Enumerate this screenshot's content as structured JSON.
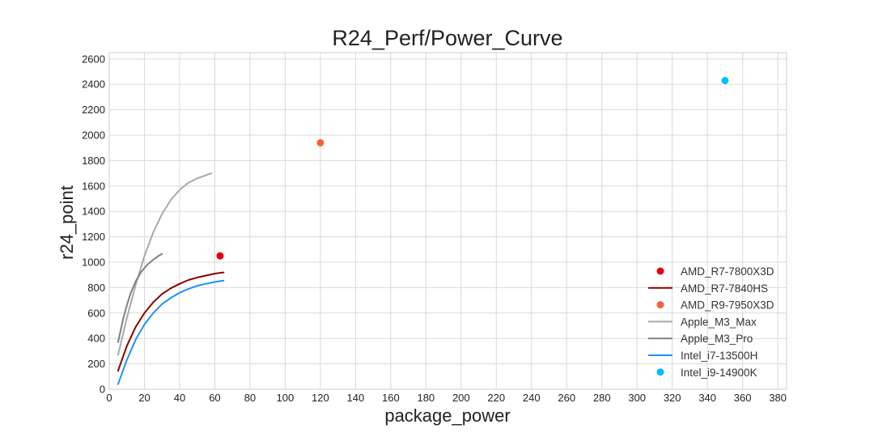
{
  "chart_data": {
    "type": "line",
    "title": "R24_Perf/Power_Curve",
    "xlabel": "package_power",
    "ylabel": "r24_point",
    "xlim": [
      0,
      385
    ],
    "ylim": [
      0,
      2650
    ],
    "xticks": [
      0,
      20,
      40,
      60,
      80,
      100,
      120,
      140,
      160,
      180,
      200,
      220,
      240,
      260,
      280,
      300,
      320,
      340,
      360,
      380
    ],
    "yticks": [
      0,
      200,
      400,
      600,
      800,
      1000,
      1200,
      1400,
      1600,
      1800,
      2000,
      2200,
      2400,
      2600
    ],
    "grid": true,
    "legend_position": "lower-right",
    "series": [
      {
        "name": "AMD_R7-7800X3D",
        "kind": "scatter",
        "color": "#e8000b",
        "x": [
          63
        ],
        "y": [
          1050
        ]
      },
      {
        "name": "AMD_R7-7840HS",
        "kind": "line",
        "color": "#8b0000",
        "x": [
          5,
          10,
          15,
          20,
          25,
          30,
          35,
          40,
          45,
          50,
          55,
          60,
          65
        ],
        "y": [
          145,
          340,
          490,
          600,
          685,
          750,
          795,
          830,
          860,
          880,
          895,
          910,
          920
        ]
      },
      {
        "name": "AMD_R9-7950X3D",
        "kind": "scatter",
        "color": "#f4623a",
        "x": [
          120
        ],
        "y": [
          1940
        ]
      },
      {
        "name": "Apple_M3_Max",
        "kind": "line",
        "color": "#a9a9a9",
        "x": [
          5,
          10,
          15,
          20,
          25,
          30,
          35,
          40,
          45,
          50,
          55,
          58
        ],
        "y": [
          270,
          560,
          820,
          1050,
          1235,
          1380,
          1490,
          1570,
          1625,
          1660,
          1685,
          1700
        ]
      },
      {
        "name": "Apple_M3_Pro",
        "kind": "line",
        "color": "#808080",
        "x": [
          5,
          8,
          10,
          12,
          15,
          18,
          20,
          22,
          25,
          28,
          30
        ],
        "y": [
          370,
          560,
          660,
          750,
          850,
          920,
          955,
          985,
          1020,
          1050,
          1065
        ]
      },
      {
        "name": "Intel_i7-13500H",
        "kind": "line",
        "color": "#1e90ff",
        "x": [
          5,
          10,
          15,
          20,
          25,
          30,
          35,
          40,
          45,
          50,
          55,
          60,
          65
        ],
        "y": [
          40,
          230,
          390,
          510,
          600,
          670,
          720,
          760,
          790,
          815,
          830,
          845,
          855
        ]
      },
      {
        "name": "Intel_i9-14900K",
        "kind": "scatter",
        "color": "#00bfff",
        "x": [
          350
        ],
        "y": [
          2430
        ]
      }
    ]
  }
}
